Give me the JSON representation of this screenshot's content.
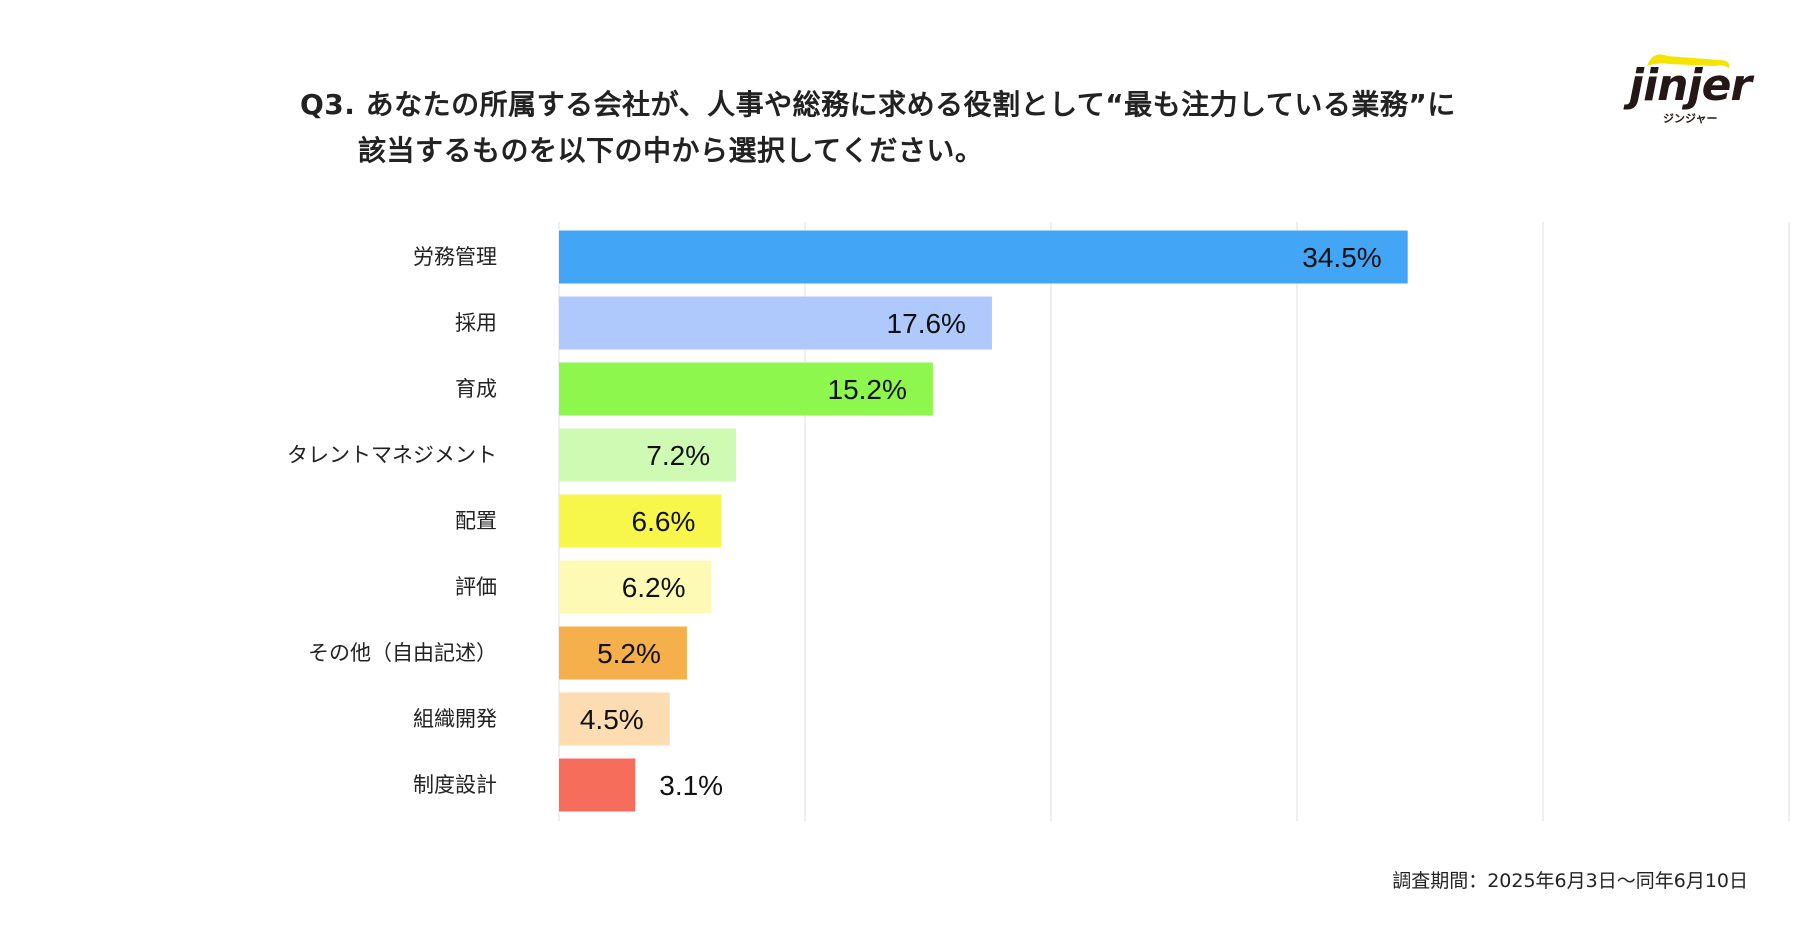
{
  "title": {
    "line1": "Q3. あなたの所属する会社が、人事や総務に求める役割として“最も注力している業務”に",
    "line2": "該当するものを以下の中から選択してください。"
  },
  "logo": {
    "word": "jinjer",
    "kana": "ジンジャー"
  },
  "footer": "調査期間：2025年6月3日〜同年6月10日",
  "chart_data": {
    "type": "bar",
    "orientation": "horizontal",
    "title": "Q3. あなたの所属する会社が、人事や総務に求める役割として“最も注力している業務”に該当するものを以下の中から選択してください。",
    "xlabel": "",
    "ylabel": "",
    "xlim": [
      0,
      50
    ],
    "grid": true,
    "gridlines": [
      0,
      10,
      20,
      30,
      40,
      50
    ],
    "categories": [
      "労務管理",
      "採用",
      "育成",
      "タレントマネジメント",
      "配置",
      "評価",
      "その他（自由記述）",
      "組織開発",
      "制度設計"
    ],
    "values": [
      34.5,
      17.6,
      15.2,
      7.2,
      6.6,
      6.2,
      5.2,
      4.5,
      3.1
    ],
    "labels": [
      "34.5%",
      "17.6%",
      "15.2%",
      "7.2%",
      "6.6%",
      "6.2%",
      "5.2%",
      "4.5%",
      "3.1%"
    ],
    "colors": [
      "#42a5f5",
      "#b0c9fd",
      "#8df74d",
      "#cffab3",
      "#f6f64b",
      "#fcfab4",
      "#f5b04c",
      "#fcdcb0",
      "#f66d5c"
    ]
  }
}
